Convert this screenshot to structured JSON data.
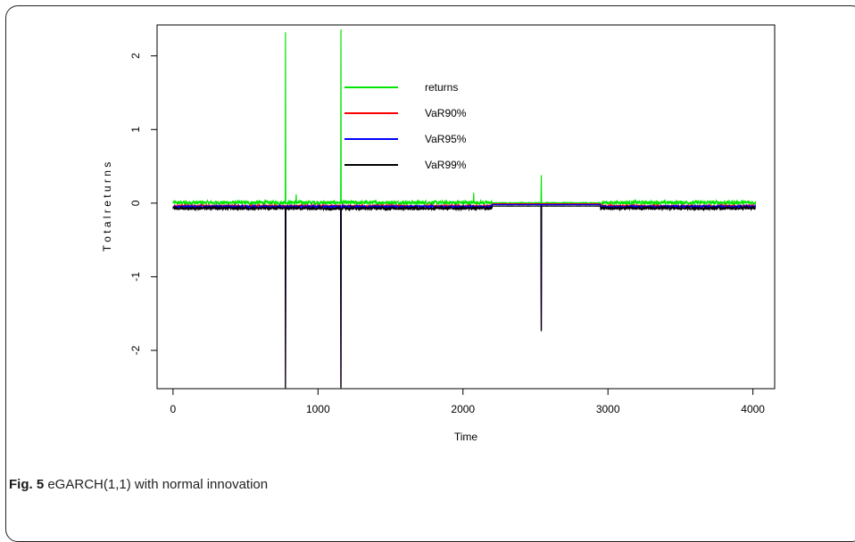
{
  "caption": {
    "label": "Fig. 5",
    "text": "eGARCH(1,1) with normal innovation"
  },
  "chart_data": {
    "type": "line",
    "title": "",
    "xlabel": "Time",
    "ylabel": "T o t a l r e t u r n s",
    "xlim": [
      -110,
      4150
    ],
    "ylim": [
      -2.52,
      2.42
    ],
    "xticks": [
      0,
      1000,
      2000,
      3000,
      4000
    ],
    "yticks": [
      -2,
      -1,
      0,
      1,
      2
    ],
    "grid": false,
    "legend_position": "top-center",
    "n_points": 4020,
    "series": [
      {
        "name": "returns",
        "color": "#00e600",
        "baseline": 0.0,
        "noise_amplitude": 0.05,
        "spikes": [
          {
            "x": 776,
            "y": 2.32
          },
          {
            "x": 1158,
            "y": 2.36
          },
          {
            "x": 2540,
            "y": 0.38
          },
          {
            "x": 2075,
            "y": 0.14
          },
          {
            "x": 850,
            "y": 0.12
          }
        ]
      },
      {
        "name": "VaR90%",
        "color": "#ff0000",
        "baseline": -0.04,
        "noise_amplitude": 0.03,
        "spikes": [
          {
            "x": 776,
            "y": -2.5
          },
          {
            "x": 1158,
            "y": -2.5
          },
          {
            "x": 2540,
            "y": -1.72
          }
        ]
      },
      {
        "name": "VaR95%",
        "color": "#0000ff",
        "baseline": -0.05,
        "noise_amplitude": 0.035,
        "spikes": [
          {
            "x": 776,
            "y": -2.5
          },
          {
            "x": 1158,
            "y": -2.5
          },
          {
            "x": 2540,
            "y": -1.73
          }
        ]
      },
      {
        "name": "VaR99%",
        "color": "#000000",
        "baseline": -0.07,
        "noise_amplitude": 0.04,
        "spikes": [
          {
            "x": 776,
            "y": -2.52
          },
          {
            "x": 1158,
            "y": -2.52
          },
          {
            "x": 2540,
            "y": -1.74
          }
        ]
      }
    ]
  }
}
